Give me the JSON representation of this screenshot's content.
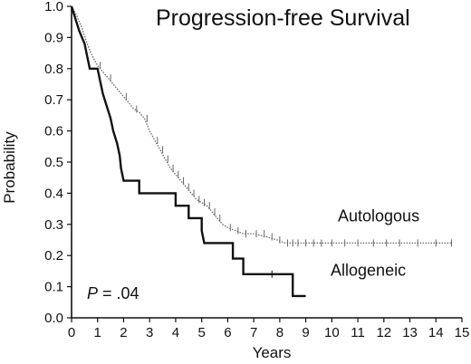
{
  "chart_data": {
    "type": "line",
    "title": "Progression-free Survival",
    "xlabel": "Years",
    "ylabel": "Probability",
    "xlim": [
      0,
      15
    ],
    "ylim": [
      0,
      1.0
    ],
    "xticks": [
      "0",
      "1",
      "2",
      "3",
      "4",
      "5",
      "6",
      "7",
      "8",
      "9",
      "10",
      "11",
      "12",
      "13",
      "14",
      "15"
    ],
    "yticks": [
      "0.0",
      "0.1",
      "0.2",
      "0.3",
      "0.4",
      "0.5",
      "0.6",
      "0.7",
      "0.8",
      "0.9",
      "1.0"
    ],
    "grid": false,
    "pvalue": {
      "label": "P",
      "text": " = .04"
    },
    "series": [
      {
        "name": "Autologous",
        "style": "dotted",
        "color": "#666666",
        "points": [
          [
            0,
            1.0
          ],
          [
            0.2,
            0.97
          ],
          [
            0.4,
            0.93
          ],
          [
            0.6,
            0.88
          ],
          [
            0.8,
            0.84
          ],
          [
            1.0,
            0.81
          ],
          [
            1.2,
            0.79
          ],
          [
            1.4,
            0.77
          ],
          [
            1.6,
            0.75
          ],
          [
            1.8,
            0.73
          ],
          [
            2.0,
            0.71
          ],
          [
            2.2,
            0.69
          ],
          [
            2.4,
            0.67
          ],
          [
            2.6,
            0.66
          ],
          [
            2.8,
            0.64
          ],
          [
            3.0,
            0.6
          ],
          [
            3.2,
            0.57
          ],
          [
            3.4,
            0.54
          ],
          [
            3.6,
            0.51
          ],
          [
            3.8,
            0.48
          ],
          [
            4.0,
            0.46
          ],
          [
            4.2,
            0.44
          ],
          [
            4.4,
            0.42
          ],
          [
            4.6,
            0.4
          ],
          [
            4.8,
            0.38
          ],
          [
            5.0,
            0.37
          ],
          [
            5.2,
            0.36
          ],
          [
            5.4,
            0.34
          ],
          [
            5.6,
            0.32
          ],
          [
            5.8,
            0.3
          ],
          [
            6.0,
            0.29
          ],
          [
            6.3,
            0.28
          ],
          [
            6.6,
            0.27
          ],
          [
            7.0,
            0.27
          ],
          [
            7.5,
            0.26
          ],
          [
            7.9,
            0.25
          ],
          [
            8.2,
            0.24
          ],
          [
            9.0,
            0.24
          ],
          [
            10.0,
            0.24
          ],
          [
            11.0,
            0.24
          ],
          [
            12.0,
            0.24
          ],
          [
            13.0,
            0.24
          ],
          [
            14.0,
            0.24
          ],
          [
            14.6,
            0.24
          ]
        ],
        "censors": [
          1.1,
          1.5,
          2.1,
          2.5,
          2.9,
          3.3,
          3.5,
          3.7,
          3.9,
          4.1,
          4.3,
          4.5,
          4.7,
          4.9,
          5.1,
          5.3,
          5.5,
          5.7,
          6.1,
          6.4,
          6.7,
          7.1,
          7.4,
          7.7,
          8.0,
          8.3,
          8.5,
          8.7,
          9.0,
          9.3,
          9.6,
          10.0,
          10.5,
          11.0,
          11.6,
          12.1,
          12.6,
          13.3,
          14.0,
          14.6
        ]
      },
      {
        "name": "Allogeneic",
        "style": "solid",
        "color": "#111111",
        "points": [
          [
            0,
            1.0
          ],
          [
            0.15,
            0.96
          ],
          [
            0.3,
            0.92
          ],
          [
            0.5,
            0.88
          ],
          [
            0.6,
            0.84
          ],
          [
            0.7,
            0.8
          ],
          [
            1.0,
            0.8
          ],
          [
            1.1,
            0.76
          ],
          [
            1.2,
            0.72
          ],
          [
            1.35,
            0.68
          ],
          [
            1.5,
            0.64
          ],
          [
            1.6,
            0.6
          ],
          [
            1.75,
            0.56
          ],
          [
            1.85,
            0.52
          ],
          [
            1.9,
            0.48
          ],
          [
            2.0,
            0.44
          ],
          [
            2.6,
            0.44
          ],
          [
            2.6,
            0.4
          ],
          [
            4.0,
            0.4
          ],
          [
            4.0,
            0.36
          ],
          [
            4.5,
            0.36
          ],
          [
            4.5,
            0.32
          ],
          [
            5.0,
            0.32
          ],
          [
            5.0,
            0.28
          ],
          [
            5.1,
            0.24
          ],
          [
            6.2,
            0.24
          ],
          [
            6.2,
            0.19
          ],
          [
            6.6,
            0.19
          ],
          [
            6.6,
            0.14
          ],
          [
            8.5,
            0.14
          ],
          [
            8.5,
            0.07
          ],
          [
            9.0,
            0.07
          ]
        ],
        "censors": [
          7.7
        ]
      }
    ],
    "annotations": [
      {
        "text": "Autologous",
        "x": 11.8,
        "y": 0.31
      },
      {
        "text": "Allogeneic",
        "x": 11.4,
        "y": 0.135
      }
    ]
  }
}
